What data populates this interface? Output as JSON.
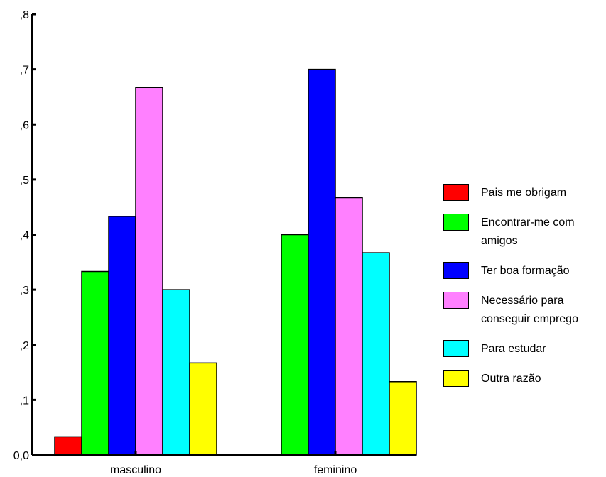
{
  "chart_data": {
    "type": "bar",
    "title": "",
    "xlabel": "",
    "ylabel": "",
    "categories": [
      "masculino",
      "feminino"
    ],
    "series": [
      {
        "name": "Pais me obrigam",
        "color": "#ff0000",
        "values": [
          0.033,
          0.0
        ]
      },
      {
        "name": "Encontrar-me com amigos",
        "color": "#00ff00",
        "values": [
          0.333,
          0.4
        ]
      },
      {
        "name": "Ter boa formação",
        "color": "#0000ff",
        "values": [
          0.433,
          0.7
        ]
      },
      {
        "name": "Necessário para conseguir emprego",
        "color": "#ff80ff",
        "values": [
          0.667,
          0.467
        ]
      },
      {
        "name": "Para estudar",
        "color": "#00ffff",
        "values": [
          0.3,
          0.367
        ]
      },
      {
        "name": "Outra razão",
        "color": "#ffff00",
        "values": [
          0.167,
          0.133
        ]
      }
    ],
    "ylim": [
      0,
      0.8
    ],
    "yticks": [
      0,
      0.1,
      0.2,
      0.3,
      0.4,
      0.5,
      0.6,
      0.7,
      0.8
    ],
    "ytick_labels": [
      "0,0",
      ",1",
      ",2",
      ",3",
      ",4",
      ",5",
      ",6",
      ",7",
      ",8"
    ],
    "grid": false,
    "legend_position": "right"
  }
}
